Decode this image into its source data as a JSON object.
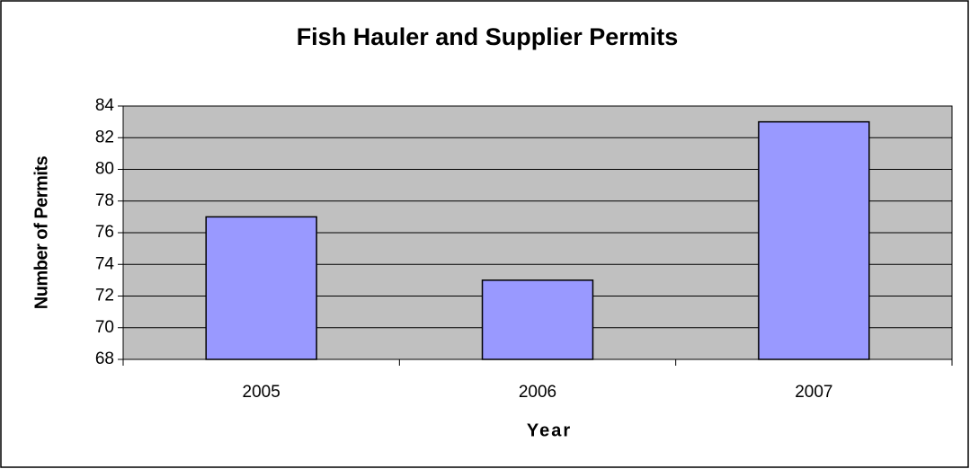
{
  "chart_data": {
    "type": "bar",
    "title": "Fish Hauler and Supplier Permits",
    "x_label": "Year",
    "y_label": "Number of Permits",
    "categories": [
      "2005",
      "2006",
      "2007"
    ],
    "values": [
      77,
      73,
      83
    ],
    "color": "#9999ff",
    "ylim": [
      68,
      84
    ],
    "yticks": [
      68,
      70,
      72,
      74,
      76,
      78,
      80,
      82,
      84
    ],
    "grid": true
  }
}
